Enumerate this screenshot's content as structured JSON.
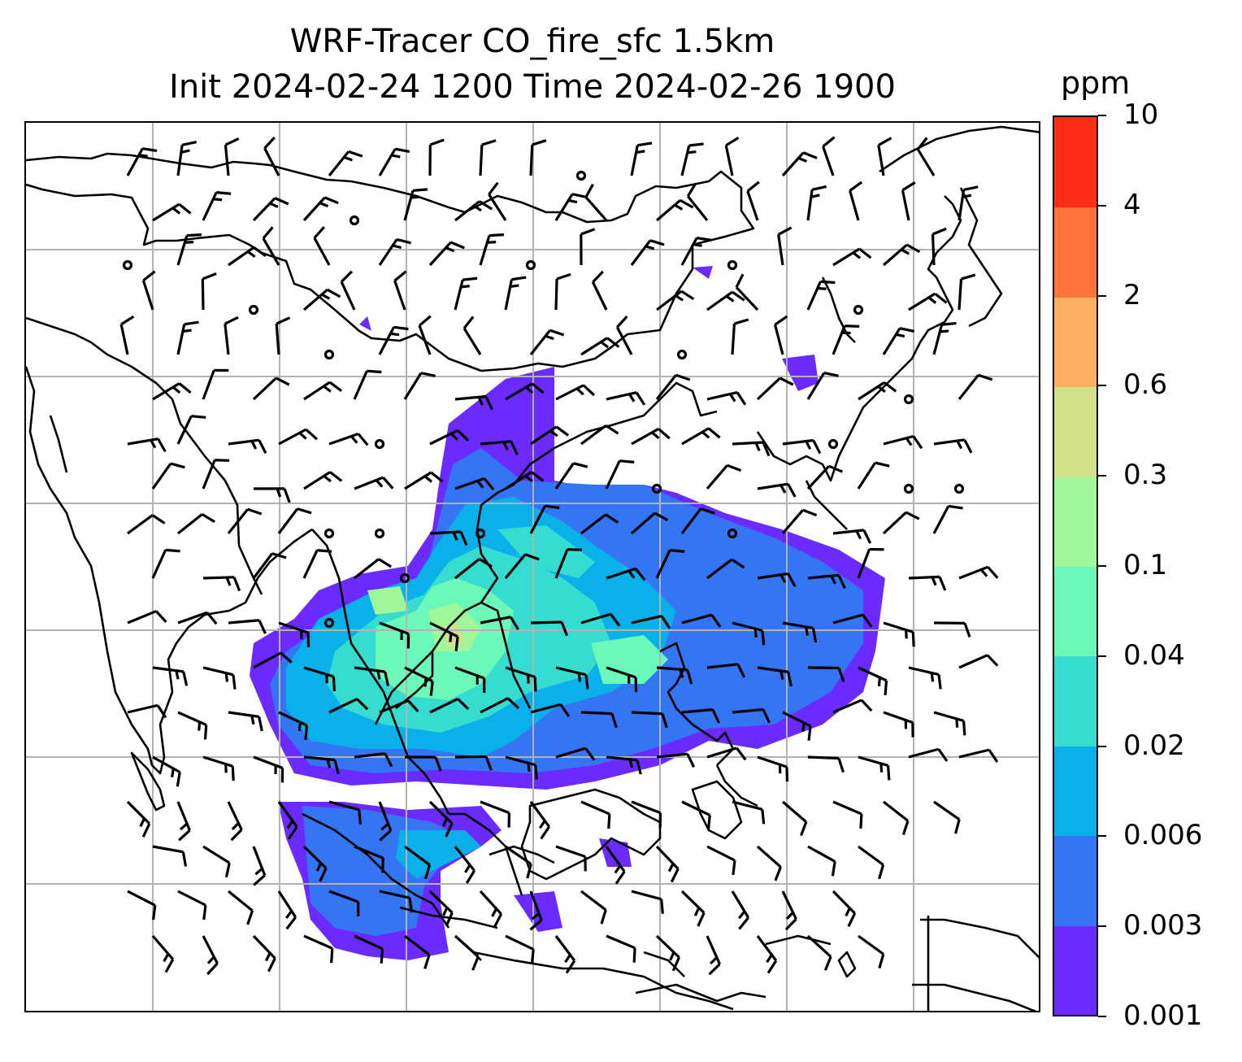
{
  "title": {
    "line1": "WRF-Tracer CO_fire_sfc 1.5km",
    "line2": "Init 2024-02-24 1200 Time 2024-02-26 1900"
  },
  "colorbar": {
    "units": "ppm",
    "levels": [
      "0.001",
      "0.003",
      "0.006",
      "0.02",
      "0.04",
      "0.1",
      "0.3",
      "0.6",
      "2",
      "4",
      "10"
    ],
    "colors": [
      "#6b2bff",
      "#3475f4",
      "#09b0ea",
      "#36dcd0",
      "#6cf8b8",
      "#a0f79a",
      "#d0e186",
      "#fdb062",
      "#fe733b",
      "#fe2d16"
    ]
  },
  "map": {
    "field": "CO_fire_sfc",
    "gridlines": true,
    "coastlines": true,
    "wind_barbs": true,
    "calm_circles": true
  }
}
